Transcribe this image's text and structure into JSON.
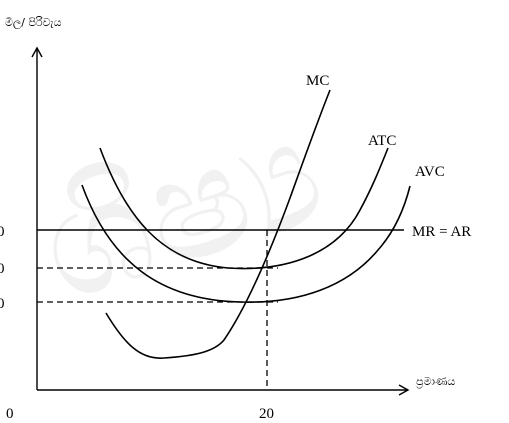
{
  "chart_data": {
    "type": "line",
    "title": "",
    "ylabel": "මිල/ පිරිවැය",
    "xlabel": "ප්‍රමාණය",
    "x_ticks": [
      "0",
      "20"
    ],
    "y_ticks": [
      "0",
      "0",
      "0"
    ],
    "grid": false,
    "legend": "none",
    "series": [
      {
        "name": "MC",
        "label": "MC"
      },
      {
        "name": "ATC",
        "label": "ATC"
      },
      {
        "name": "AVC",
        "label": "AVC"
      },
      {
        "name": "MR = AR",
        "label": "MR = AR"
      }
    ]
  }
}
